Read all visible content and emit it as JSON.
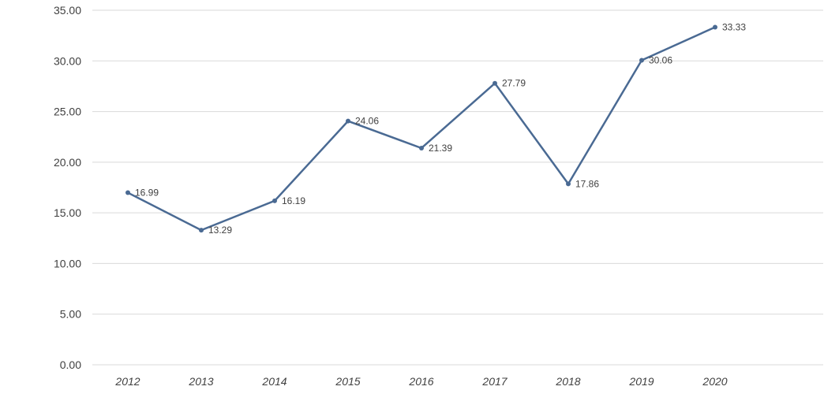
{
  "chart_data": {
    "type": "line",
    "title": "",
    "xlabel": "",
    "ylabel": "",
    "categories": [
      "2012",
      "2013",
      "2014",
      "2015",
      "2016",
      "2017",
      "2018",
      "2019",
      "2020"
    ],
    "series": [
      {
        "values": [
          16.99,
          13.29,
          16.19,
          24.06,
          21.39,
          27.79,
          17.86,
          30.06,
          33.33
        ],
        "color": "#4a6a93"
      }
    ],
    "data_labels": [
      "16.99",
      "13.29",
      "16.19",
      "24.06",
      "21.39",
      "27.79",
      "17.86",
      "30.06",
      "33.33"
    ],
    "y_ticks": [
      "0.00",
      "5.00",
      "10.00",
      "15.00",
      "20.00",
      "25.00",
      "30.00",
      "35.00"
    ],
    "ylim": [
      0,
      35
    ],
    "grid": true,
    "legend": "none"
  }
}
